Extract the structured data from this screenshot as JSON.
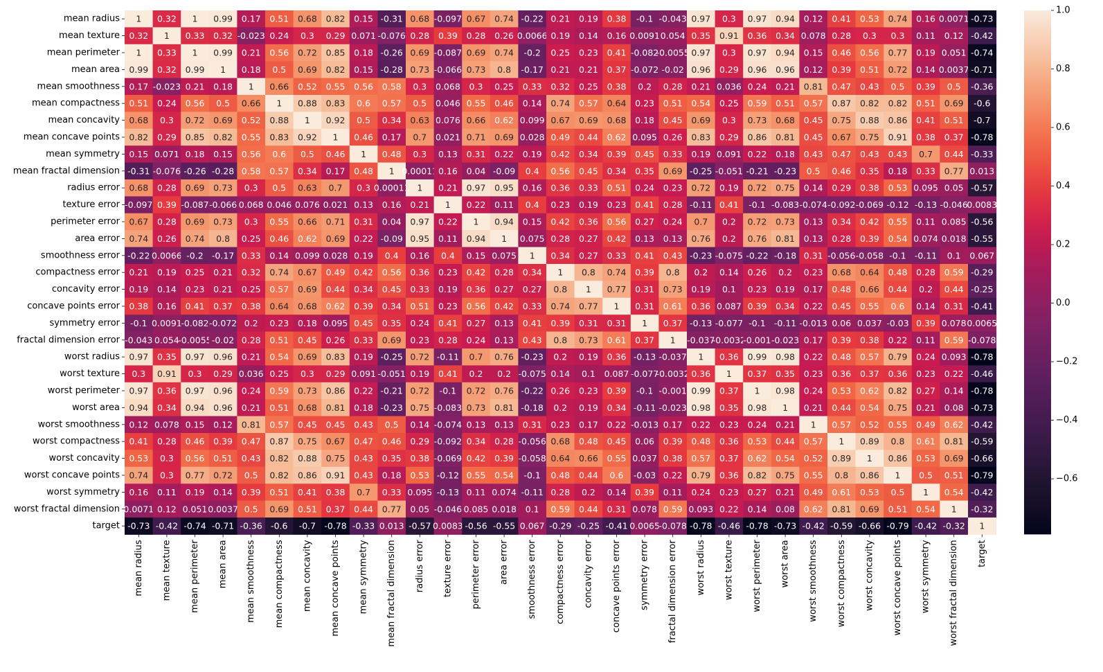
{
  "chart_data": {
    "type": "heatmap",
    "title": "",
    "xlabel": "",
    "ylabel": "",
    "labels": [
      "mean radius",
      "mean texture",
      "mean perimeter",
      "mean area",
      "mean smoothness",
      "mean compactness",
      "mean concavity",
      "mean concave points",
      "mean symmetry",
      "mean fractal dimension",
      "radius error",
      "texture error",
      "perimeter error",
      "area error",
      "smoothness error",
      "compactness error",
      "concavity error",
      "concave points error",
      "symmetry error",
      "fractal dimension error",
      "worst radius",
      "worst texture",
      "worst perimeter",
      "worst area",
      "worst smoothness",
      "worst compactness",
      "worst concavity",
      "worst concave points",
      "worst symmetry",
      "worst fractal dimension",
      "target"
    ],
    "colormap": "rocket",
    "vmin": -0.79,
    "vmax": 1.0,
    "colorbar_ticks": [
      "1.0",
      "0.8",
      "0.6",
      "0.4",
      "0.2",
      "0.0",
      "−0.2",
      "−0.4",
      "−0.6"
    ],
    "colorbar_tick_values": [
      1.0,
      0.8,
      0.6,
      0.4,
      0.2,
      0.0,
      -0.2,
      -0.4,
      -0.6
    ],
    "legend_position": "right",
    "matrix": [
      [
        1,
        0.32,
        1,
        0.99,
        0.17,
        0.51,
        0.68,
        0.82,
        0.15,
        -0.31,
        0.68,
        -0.097,
        0.67,
        0.74,
        -0.22,
        0.21,
        0.19,
        0.38,
        -0.1,
        -0.043,
        0.97,
        0.3,
        0.97,
        0.94,
        0.12,
        0.41,
        0.53,
        0.74,
        0.16,
        0.0071,
        -0.73
      ],
      [
        0.32,
        1,
        0.33,
        0.32,
        -0.023,
        0.24,
        0.3,
        0.29,
        0.071,
        -0.076,
        0.28,
        0.39,
        0.28,
        0.26,
        0.0066,
        0.19,
        0.14,
        0.16,
        0.0091,
        0.054,
        0.35,
        0.91,
        0.36,
        0.34,
        0.078,
        0.28,
        0.3,
        0.3,
        0.11,
        0.12,
        -0.42
      ],
      [
        1,
        0.33,
        1,
        0.99,
        0.21,
        0.56,
        0.72,
        0.85,
        0.18,
        -0.26,
        0.69,
        -0.087,
        0.69,
        0.74,
        -0.2,
        0.25,
        0.23,
        0.41,
        -0.082,
        -0.0055,
        0.97,
        0.3,
        0.97,
        0.94,
        0.15,
        0.46,
        0.56,
        0.77,
        0.19,
        0.051,
        -0.74
      ],
      [
        0.99,
        0.32,
        0.99,
        1,
        0.18,
        0.5,
        0.69,
        0.82,
        0.15,
        -0.28,
        0.73,
        -0.066,
        0.73,
        0.8,
        -0.17,
        0.21,
        0.21,
        0.37,
        -0.072,
        -0.02,
        0.96,
        0.29,
        0.96,
        0.96,
        0.12,
        0.39,
        0.51,
        0.72,
        0.14,
        0.0037,
        -0.71
      ],
      [
        0.17,
        -0.023,
        0.21,
        0.18,
        1,
        0.66,
        0.52,
        0.55,
        0.56,
        0.58,
        0.3,
        0.068,
        0.3,
        0.25,
        0.33,
        0.32,
        0.25,
        0.38,
        0.2,
        0.28,
        0.21,
        0.036,
        0.24,
        0.21,
        0.81,
        0.47,
        0.43,
        0.5,
        0.39,
        0.5,
        -0.36
      ],
      [
        0.51,
        0.24,
        0.56,
        0.5,
        0.66,
        1,
        0.88,
        0.83,
        0.6,
        0.57,
        0.5,
        0.046,
        0.55,
        0.46,
        0.14,
        0.74,
        0.57,
        0.64,
        0.23,
        0.51,
        0.54,
        0.25,
        0.59,
        0.51,
        0.57,
        0.87,
        0.82,
        0.82,
        0.51,
        0.69,
        -0.6
      ],
      [
        0.68,
        0.3,
        0.72,
        0.69,
        0.52,
        0.88,
        1,
        0.92,
        0.5,
        0.34,
        0.63,
        0.076,
        0.66,
        0.62,
        0.099,
        0.67,
        0.69,
        0.68,
        0.18,
        0.45,
        0.69,
        0.3,
        0.73,
        0.68,
        0.45,
        0.75,
        0.88,
        0.86,
        0.41,
        0.51,
        -0.7
      ],
      [
        0.82,
        0.29,
        0.85,
        0.82,
        0.55,
        0.83,
        0.92,
        1,
        0.46,
        0.17,
        0.7,
        0.021,
        0.71,
        0.69,
        0.028,
        0.49,
        0.44,
        0.62,
        0.095,
        0.26,
        0.83,
        0.29,
        0.86,
        0.81,
        0.45,
        0.67,
        0.75,
        0.91,
        0.38,
        0.37,
        -0.78
      ],
      [
        0.15,
        0.071,
        0.18,
        0.15,
        0.56,
        0.6,
        0.5,
        0.46,
        1,
        0.48,
        0.3,
        0.13,
        0.31,
        0.22,
        0.19,
        0.42,
        0.34,
        0.39,
        0.45,
        0.33,
        0.19,
        0.091,
        0.22,
        0.18,
        0.43,
        0.47,
        0.43,
        0.43,
        0.7,
        0.44,
        -0.33
      ],
      [
        -0.31,
        -0.076,
        -0.26,
        -0.28,
        0.58,
        0.57,
        0.34,
        0.17,
        0.48,
        1,
        0.00011,
        0.16,
        0.04,
        -0.09,
        0.4,
        0.56,
        0.45,
        0.34,
        0.35,
        0.69,
        -0.25,
        -0.051,
        -0.21,
        -0.23,
        0.5,
        0.46,
        0.35,
        0.18,
        0.33,
        0.77,
        0.013
      ],
      [
        0.68,
        0.28,
        0.69,
        0.73,
        0.3,
        0.5,
        0.63,
        0.7,
        0.3,
        0.00011,
        1,
        0.21,
        0.97,
        0.95,
        0.16,
        0.36,
        0.33,
        0.51,
        0.24,
        0.23,
        0.72,
        0.19,
        0.72,
        0.75,
        0.14,
        0.29,
        0.38,
        0.53,
        0.095,
        0.05,
        -0.57
      ],
      [
        -0.097,
        0.39,
        -0.087,
        -0.066,
        0.068,
        0.046,
        0.076,
        0.021,
        0.13,
        0.16,
        0.21,
        1,
        0.22,
        0.11,
        0.4,
        0.23,
        0.19,
        0.23,
        0.41,
        0.28,
        -0.11,
        0.41,
        -0.1,
        -0.083,
        -0.074,
        -0.092,
        -0.069,
        -0.12,
        -0.13,
        -0.046,
        0.0083
      ],
      [
        0.67,
        0.28,
        0.69,
        0.73,
        0.3,
        0.55,
        0.66,
        0.71,
        0.31,
        0.04,
        0.97,
        0.22,
        1,
        0.94,
        0.15,
        0.42,
        0.36,
        0.56,
        0.27,
        0.24,
        0.7,
        0.2,
        0.72,
        0.73,
        0.13,
        0.34,
        0.42,
        0.55,
        0.11,
        0.085,
        -0.56
      ],
      [
        0.74,
        0.26,
        0.74,
        0.8,
        0.25,
        0.46,
        0.62,
        0.69,
        0.22,
        -0.09,
        0.95,
        0.11,
        0.94,
        1,
        0.075,
        0.28,
        0.27,
        0.42,
        0.13,
        0.13,
        0.76,
        0.2,
        0.76,
        0.81,
        0.13,
        0.28,
        0.39,
        0.54,
        0.074,
        0.018,
        -0.55
      ],
      [
        -0.22,
        0.0066,
        -0.2,
        -0.17,
        0.33,
        0.14,
        0.099,
        0.028,
        0.19,
        0.4,
        0.16,
        0.4,
        0.15,
        0.075,
        1,
        0.34,
        0.27,
        0.33,
        0.41,
        0.43,
        -0.23,
        -0.075,
        -0.22,
        -0.18,
        0.31,
        -0.056,
        -0.058,
        -0.1,
        -0.11,
        0.1,
        0.067
      ],
      [
        0.21,
        0.19,
        0.25,
        0.21,
        0.32,
        0.74,
        0.67,
        0.49,
        0.42,
        0.56,
        0.36,
        0.23,
        0.42,
        0.28,
        0.34,
        1,
        0.8,
        0.74,
        0.39,
        0.8,
        0.2,
        0.14,
        0.26,
        0.2,
        0.23,
        0.68,
        0.64,
        0.48,
        0.28,
        0.59,
        -0.29
      ],
      [
        0.19,
        0.14,
        0.23,
        0.21,
        0.25,
        0.57,
        0.69,
        0.44,
        0.34,
        0.45,
        0.33,
        0.19,
        0.36,
        0.27,
        0.27,
        0.8,
        1,
        0.77,
        0.31,
        0.73,
        0.19,
        0.1,
        0.23,
        0.19,
        0.17,
        0.48,
        0.66,
        0.44,
        0.2,
        0.44,
        -0.25
      ],
      [
        0.38,
        0.16,
        0.41,
        0.37,
        0.38,
        0.64,
        0.68,
        0.62,
        0.39,
        0.34,
        0.51,
        0.23,
        0.56,
        0.42,
        0.33,
        0.74,
        0.77,
        1,
        0.31,
        0.61,
        0.36,
        0.087,
        0.39,
        0.34,
        0.22,
        0.45,
        0.55,
        0.6,
        0.14,
        0.31,
        -0.41
      ],
      [
        -0.1,
        0.0091,
        -0.082,
        -0.072,
        0.2,
        0.23,
        0.18,
        0.095,
        0.45,
        0.35,
        0.24,
        0.41,
        0.27,
        0.13,
        0.41,
        0.39,
        0.31,
        0.31,
        1,
        0.37,
        -0.13,
        -0.077,
        -0.1,
        -0.11,
        -0.013,
        0.06,
        0.037,
        -0.03,
        0.39,
        0.078,
        0.0065
      ],
      [
        -0.043,
        0.054,
        -0.0055,
        -0.02,
        0.28,
        0.51,
        0.45,
        0.26,
        0.33,
        0.69,
        0.23,
        0.28,
        0.24,
        0.13,
        0.43,
        0.8,
        0.73,
        0.61,
        0.37,
        1,
        -0.037,
        -0.0032,
        -0.001,
        -0.023,
        0.17,
        0.39,
        0.38,
        0.22,
        0.11,
        0.59,
        -0.078
      ],
      [
        0.97,
        0.35,
        0.97,
        0.96,
        0.21,
        0.54,
        0.69,
        0.83,
        0.19,
        -0.25,
        0.72,
        -0.11,
        0.7,
        0.76,
        -0.23,
        0.2,
        0.19,
        0.36,
        -0.13,
        -0.037,
        1,
        0.36,
        0.99,
        0.98,
        0.22,
        0.48,
        0.57,
        0.79,
        0.24,
        0.093,
        -0.78
      ],
      [
        0.3,
        0.91,
        0.3,
        0.29,
        0.036,
        0.25,
        0.3,
        0.29,
        0.091,
        -0.051,
        0.19,
        0.41,
        0.2,
        0.2,
        -0.075,
        0.14,
        0.1,
        0.087,
        -0.077,
        -0.0032,
        0.36,
        1,
        0.37,
        0.35,
        0.23,
        0.36,
        0.37,
        0.36,
        0.23,
        0.22,
        -0.46
      ],
      [
        0.97,
        0.36,
        0.97,
        0.96,
        0.24,
        0.59,
        0.73,
        0.86,
        0.22,
        -0.21,
        0.72,
        -0.1,
        0.72,
        0.76,
        -0.22,
        0.26,
        0.23,
        0.39,
        -0.1,
        -0.001,
        0.99,
        0.37,
        1,
        0.98,
        0.24,
        0.53,
        0.62,
        0.82,
        0.27,
        0.14,
        -0.78
      ],
      [
        0.94,
        0.34,
        0.94,
        0.96,
        0.21,
        0.51,
        0.68,
        0.81,
        0.18,
        -0.23,
        0.75,
        -0.083,
        0.73,
        0.81,
        -0.18,
        0.2,
        0.19,
        0.34,
        -0.11,
        -0.023,
        0.98,
        0.35,
        0.98,
        1,
        0.21,
        0.44,
        0.54,
        0.75,
        0.21,
        0.08,
        -0.73
      ],
      [
        0.12,
        0.078,
        0.15,
        0.12,
        0.81,
        0.57,
        0.45,
        0.45,
        0.43,
        0.5,
        0.14,
        -0.074,
        0.13,
        0.13,
        0.31,
        0.23,
        0.17,
        0.22,
        -0.013,
        0.17,
        0.22,
        0.23,
        0.24,
        0.21,
        1,
        0.57,
        0.52,
        0.55,
        0.49,
        0.62,
        -0.42
      ],
      [
        0.41,
        0.28,
        0.46,
        0.39,
        0.47,
        0.87,
        0.75,
        0.67,
        0.47,
        0.46,
        0.29,
        -0.092,
        0.34,
        0.28,
        -0.056,
        0.68,
        0.48,
        0.45,
        0.06,
        0.39,
        0.48,
        0.36,
        0.53,
        0.44,
        0.57,
        1,
        0.89,
        0.8,
        0.61,
        0.81,
        -0.59
      ],
      [
        0.53,
        0.3,
        0.56,
        0.51,
        0.43,
        0.82,
        0.88,
        0.75,
        0.43,
        0.35,
        0.38,
        -0.069,
        0.42,
        0.39,
        -0.058,
        0.64,
        0.66,
        0.55,
        0.037,
        0.38,
        0.57,
        0.37,
        0.62,
        0.54,
        0.52,
        0.89,
        1,
        0.86,
        0.53,
        0.69,
        -0.66
      ],
      [
        0.74,
        0.3,
        0.77,
        0.72,
        0.5,
        0.82,
        0.86,
        0.91,
        0.43,
        0.18,
        0.53,
        -0.12,
        0.55,
        0.54,
        -0.1,
        0.48,
        0.44,
        0.6,
        -0.03,
        0.22,
        0.79,
        0.36,
        0.82,
        0.75,
        0.55,
        0.8,
        0.86,
        1,
        0.5,
        0.51,
        -0.79
      ],
      [
        0.16,
        0.11,
        0.19,
        0.14,
        0.39,
        0.51,
        0.41,
        0.38,
        0.7,
        0.33,
        0.095,
        -0.13,
        0.11,
        0.074,
        -0.11,
        0.28,
        0.2,
        0.14,
        0.39,
        0.11,
        0.24,
        0.23,
        0.27,
        0.21,
        0.49,
        0.61,
        0.53,
        0.5,
        1,
        0.54,
        -0.42
      ],
      [
        0.0071,
        0.12,
        0.051,
        0.0037,
        0.5,
        0.69,
        0.51,
        0.37,
        0.44,
        0.77,
        0.05,
        -0.046,
        0.085,
        0.018,
        0.1,
        0.59,
        0.44,
        0.31,
        0.078,
        0.59,
        0.093,
        0.22,
        0.14,
        0.08,
        0.62,
        0.81,
        0.69,
        0.51,
        0.54,
        1,
        -0.32
      ],
      [
        -0.73,
        -0.42,
        -0.74,
        -0.71,
        -0.36,
        -0.6,
        -0.7,
        -0.78,
        -0.33,
        0.013,
        -0.57,
        0.0083,
        -0.56,
        -0.55,
        0.067,
        -0.29,
        -0.25,
        -0.41,
        0.0065,
        -0.078,
        -0.78,
        -0.46,
        -0.78,
        -0.73,
        -0.42,
        -0.59,
        -0.66,
        -0.79,
        -0.42,
        -0.32,
        1
      ]
    ]
  }
}
